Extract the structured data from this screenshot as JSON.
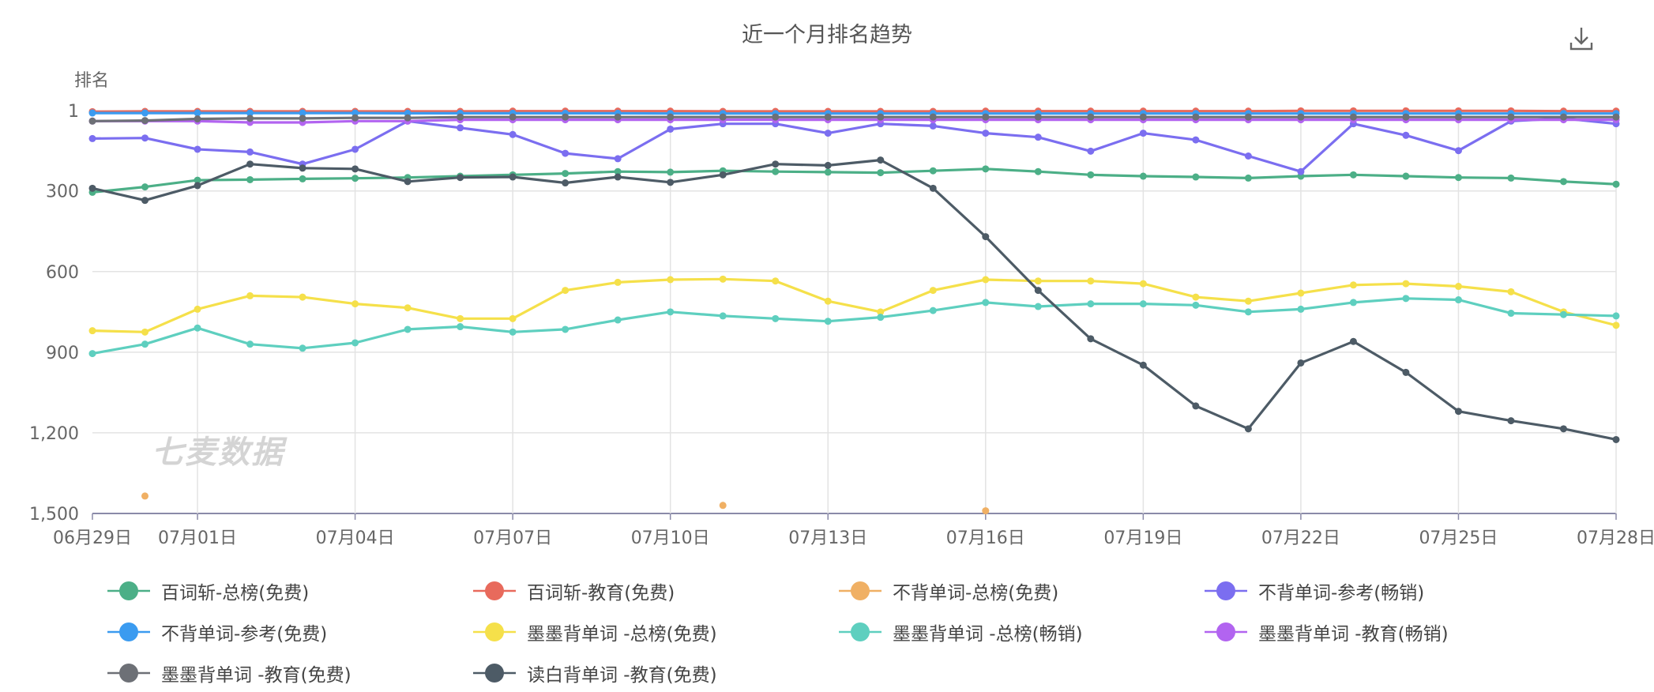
{
  "chart_data": {
    "type": "line",
    "title": "近一个月排名趋势",
    "ylabel": "排名",
    "xlabel": "",
    "y_inverted": true,
    "ylim": [
      1,
      1500
    ],
    "yticks": [
      {
        "value": 1,
        "label": "1"
      },
      {
        "value": 300,
        "label": "300"
      },
      {
        "value": 600,
        "label": "600"
      },
      {
        "value": 900,
        "label": "900"
      },
      {
        "value": 1200,
        "label": "1,200"
      },
      {
        "value": 1500,
        "label": "1,500"
      }
    ],
    "x": [
      "06月29日",
      "06月30日",
      "07月01日",
      "07月02日",
      "07月03日",
      "07月04日",
      "07月05日",
      "07月06日",
      "07月07日",
      "07月08日",
      "07月09日",
      "07月10日",
      "07月11日",
      "07月12日",
      "07月13日",
      "07月14日",
      "07月15日",
      "07月16日",
      "07月17日",
      "07月18日",
      "07月19日",
      "07月20日",
      "07月21日",
      "07月22日",
      "07月23日",
      "07月24日",
      "07月25日",
      "07月26日",
      "07月27日",
      "07月28日"
    ],
    "xtick_labels": [
      "06月29日",
      "07月01日",
      "07月04日",
      "07月07日",
      "07月10日",
      "07月13日",
      "07月16日",
      "07月19日",
      "07月22日",
      "07月25日",
      "07月28日"
    ],
    "grid": true,
    "legend_position": "bottom",
    "series": [
      {
        "name": "百词斩-总榜(免费)",
        "color": "#4caf87",
        "values": [
          305,
          285,
          260,
          258,
          255,
          253,
          250,
          245,
          240,
          235,
          228,
          230,
          225,
          228,
          230,
          232,
          225,
          218,
          228,
          240,
          245,
          248,
          252,
          245,
          240,
          245,
          250,
          252,
          265,
          275
        ]
      },
      {
        "name": "百词斩-教育(免费)",
        "color": "#e86a5c",
        "values": [
          5,
          4,
          4,
          4,
          4,
          4,
          4,
          4,
          3,
          3,
          3,
          3,
          4,
          4,
          4,
          4,
          4,
          3,
          3,
          3,
          3,
          3,
          3,
          2,
          2,
          2,
          2,
          2,
          3,
          3
        ]
      },
      {
        "name": "不背单词-总榜(免费)",
        "color": "#f0b064",
        "values": [
          null,
          1435,
          null,
          null,
          null,
          null,
          null,
          null,
          null,
          null,
          null,
          null,
          1470,
          null,
          null,
          null,
          null,
          1490,
          null,
          null,
          null,
          null,
          null,
          null,
          null,
          null,
          null,
          null,
          null,
          null
        ]
      },
      {
        "name": "不背单词-参考(畅销)",
        "color": "#7b6ef0",
        "values": [
          105,
          103,
          145,
          155,
          200,
          145,
          40,
          65,
          90,
          160,
          180,
          70,
          50,
          50,
          85,
          50,
          58,
          85,
          100,
          152,
          85,
          110,
          170,
          228,
          50,
          93,
          150,
          40,
          30,
          50
        ]
      },
      {
        "name": "不背单词-参考(免费)",
        "color": "#3b9bf0",
        "values": [
          10,
          10,
          10,
          10,
          10,
          10,
          11,
          11,
          11,
          11,
          11,
          12,
          12,
          12,
          12,
          12,
          12,
          12,
          12,
          12,
          12,
          12,
          12,
          12,
          12,
          12,
          12,
          12,
          12,
          12
        ]
      },
      {
        "name": "墨墨背单词 -总榜(免费)",
        "color": "#f5e04a",
        "values": [
          820,
          825,
          740,
          690,
          695,
          720,
          735,
          775,
          775,
          670,
          640,
          630,
          628,
          635,
          710,
          750,
          670,
          630,
          635,
          635,
          645,
          695,
          710,
          680,
          650,
          645,
          655,
          675,
          750,
          800
        ]
      },
      {
        "name": "墨墨背单词 -总榜(畅销)",
        "color": "#5ecfbf",
        "values": [
          905,
          870,
          810,
          870,
          885,
          865,
          815,
          805,
          825,
          815,
          780,
          750,
          765,
          775,
          785,
          770,
          745,
          715,
          730,
          720,
          720,
          725,
          750,
          740,
          715,
          700,
          705,
          755,
          760,
          765
        ]
      },
      {
        "name": "墨墨背单词 -教育(畅销)",
        "color": "#b264f0",
        "values": [
          40,
          40,
          40,
          45,
          45,
          40,
          40,
          35,
          35,
          35,
          35,
          35,
          35,
          35,
          35,
          35,
          35,
          35,
          35,
          35,
          35,
          35,
          35,
          35,
          35,
          35,
          35,
          35,
          35,
          35
        ]
      },
      {
        "name": "墨墨背单词 -教育(免费)",
        "color": "#6d7076",
        "values": [
          40,
          38,
          32,
          30,
          30,
          28,
          28,
          25,
          25,
          25,
          25,
          25,
          25,
          25,
          25,
          25,
          25,
          25,
          25,
          25,
          25,
          25,
          25,
          25,
          25,
          25,
          25,
          25,
          25,
          25
        ]
      },
      {
        "name": "读白背单词 -教育(免费)",
        "color": "#4d5b66",
        "values": [
          290,
          335,
          280,
          200,
          215,
          218,
          265,
          250,
          248,
          270,
          248,
          268,
          240,
          200,
          205,
          185,
          290,
          470,
          670,
          850,
          948,
          1100,
          1185,
          940,
          860,
          975,
          1120,
          1155,
          1185,
          1225
        ]
      }
    ]
  },
  "ui": {
    "watermark": "七麦数据",
    "download_icon": "download-icon"
  }
}
